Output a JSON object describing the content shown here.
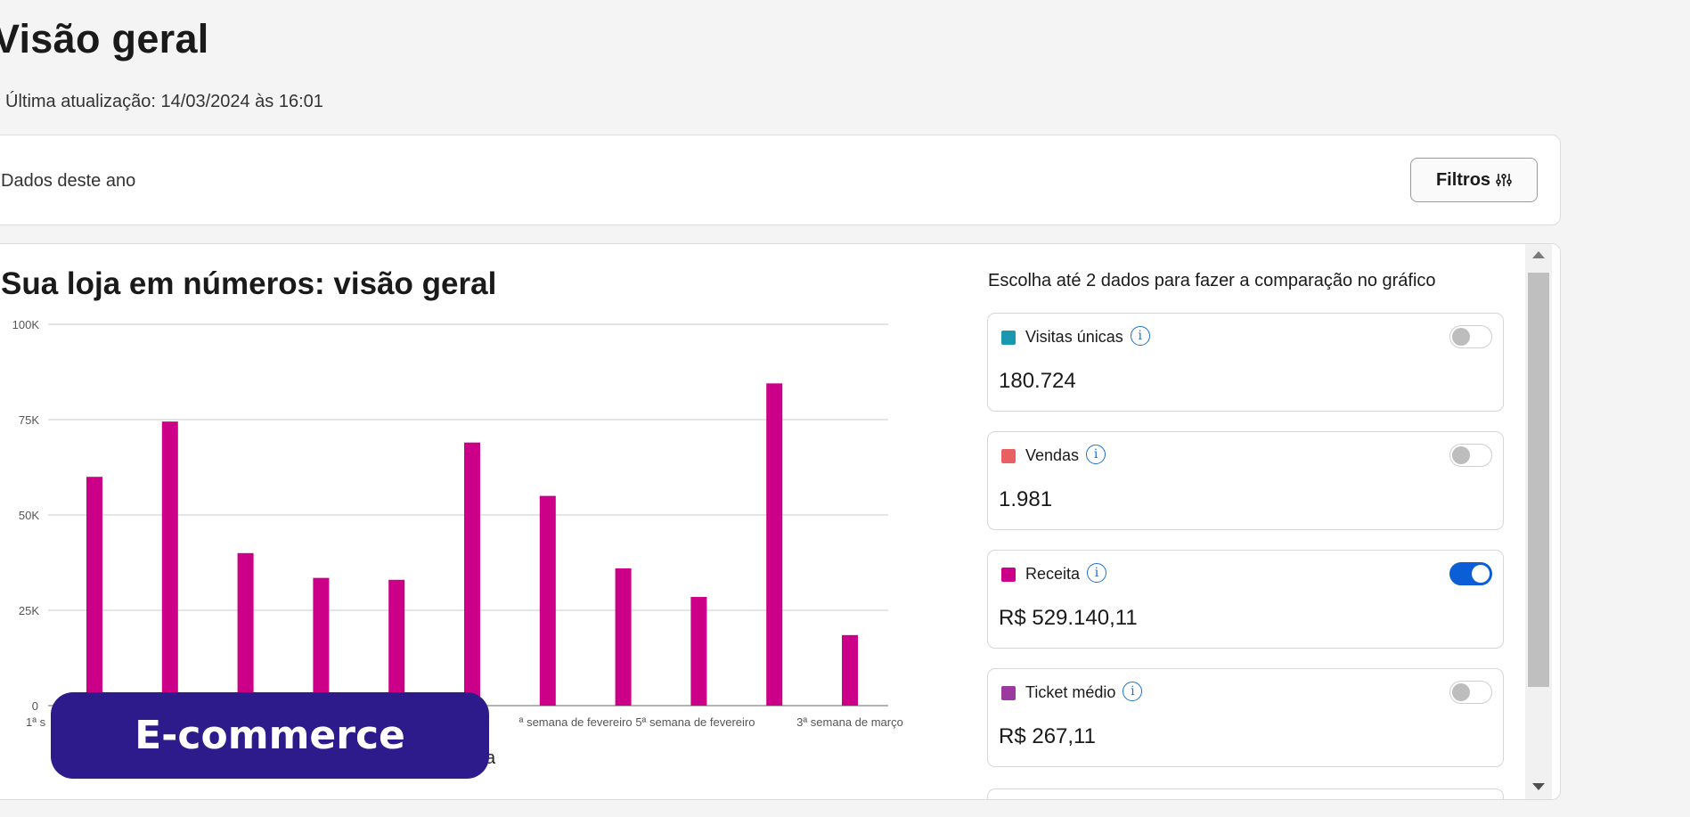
{
  "page": {
    "title": "Visão geral",
    "last_update": "Última atualização: 14/03/2024 às 16:01"
  },
  "filter_bar": {
    "label": "Dados deste ano",
    "button_label": "Filtros"
  },
  "overview": {
    "title": "Sua loja em números: visão geral",
    "compare_title": "Escolha até 2 dados para fazer a comparação no gráfico",
    "legend_partial": "ita"
  },
  "metrics": [
    {
      "label": "Visitas únicas",
      "value": "180.724",
      "color": "#1a98b2",
      "enabled": false
    },
    {
      "label": "Vendas",
      "value": "1.981",
      "color": "#e86060",
      "enabled": false
    },
    {
      "label": "Receita",
      "value": "R$ 529.140,11",
      "color": "#cc0088",
      "enabled": true
    },
    {
      "label": "Ticket médio",
      "value": "R$ 267,11",
      "color": "#9b3a9e",
      "enabled": false
    }
  ],
  "badge": {
    "label": "E-commerce"
  },
  "chart_data": {
    "type": "bar",
    "ylim": [
      0,
      100000
    ],
    "y_tick_labels": [
      "0",
      "25K",
      "50K",
      "75K",
      "100K"
    ],
    "x_tick_labels_visible": [
      "1ª s",
      "ª semana de fevereiro",
      "5ª semana de fevereiro",
      "3ª semana de março"
    ],
    "series": [
      {
        "color": "#cc0088",
        "values": [
          60000,
          74500,
          40000,
          33500,
          33000,
          69000,
          55000,
          36000,
          28500,
          84500,
          18500
        ]
      }
    ]
  }
}
